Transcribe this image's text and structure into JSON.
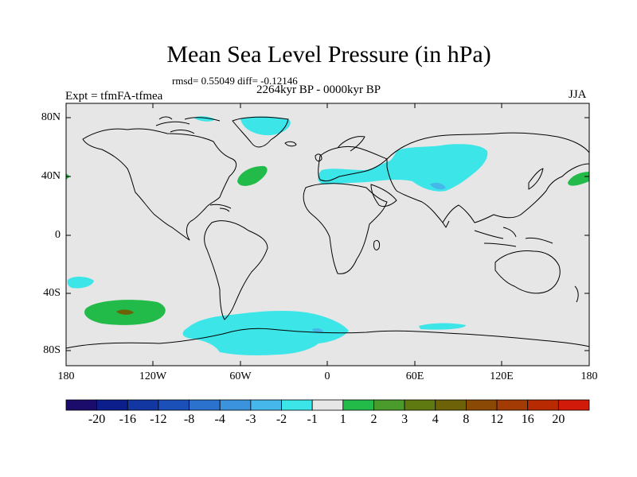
{
  "title": "Mean Sea Level Pressure (in hPa)",
  "stats": "rmsd= 0.55049 diff= -0.12146",
  "subtitle": "2264kyr BP - 0000kyr BP",
  "left_label": "Expt = tfmFA-tfmea",
  "right_label": "JJA",
  "axes": {
    "lat_ticks": [
      "80N",
      "40N",
      "0",
      "40S",
      "80S"
    ],
    "lon_ticks": [
      "180",
      "120W",
      "60W",
      "0",
      "60E",
      "120E",
      "180"
    ]
  },
  "colorbar": {
    "colors": [
      "#1b0b6a",
      "#0c1e8c",
      "#1236a2",
      "#1a50b8",
      "#2b72cf",
      "#3b93dd",
      "#45b7ea",
      "#3be5e8",
      "#e6e6e6",
      "#22bb4a",
      "#4b9a2c",
      "#607a12",
      "#6d6208",
      "#8a4a06",
      "#a33b04",
      "#b82a02",
      "#d21a0a"
    ],
    "labels": [
      "-20",
      "-16",
      "-12",
      "-8",
      "-4",
      "-3",
      "-2",
      "-1",
      "1",
      "2",
      "3",
      "4",
      "8",
      "12",
      "16",
      "20"
    ]
  },
  "colors": {
    "land_background": "#e6e6e6",
    "neg_1_2": "#3be5e8",
    "neg_2_3": "#45b7ea",
    "pos_1_2": "#22bb4a",
    "pos_2_3": "#4b9a2c",
    "pos_4_8": "#6d6208"
  }
}
